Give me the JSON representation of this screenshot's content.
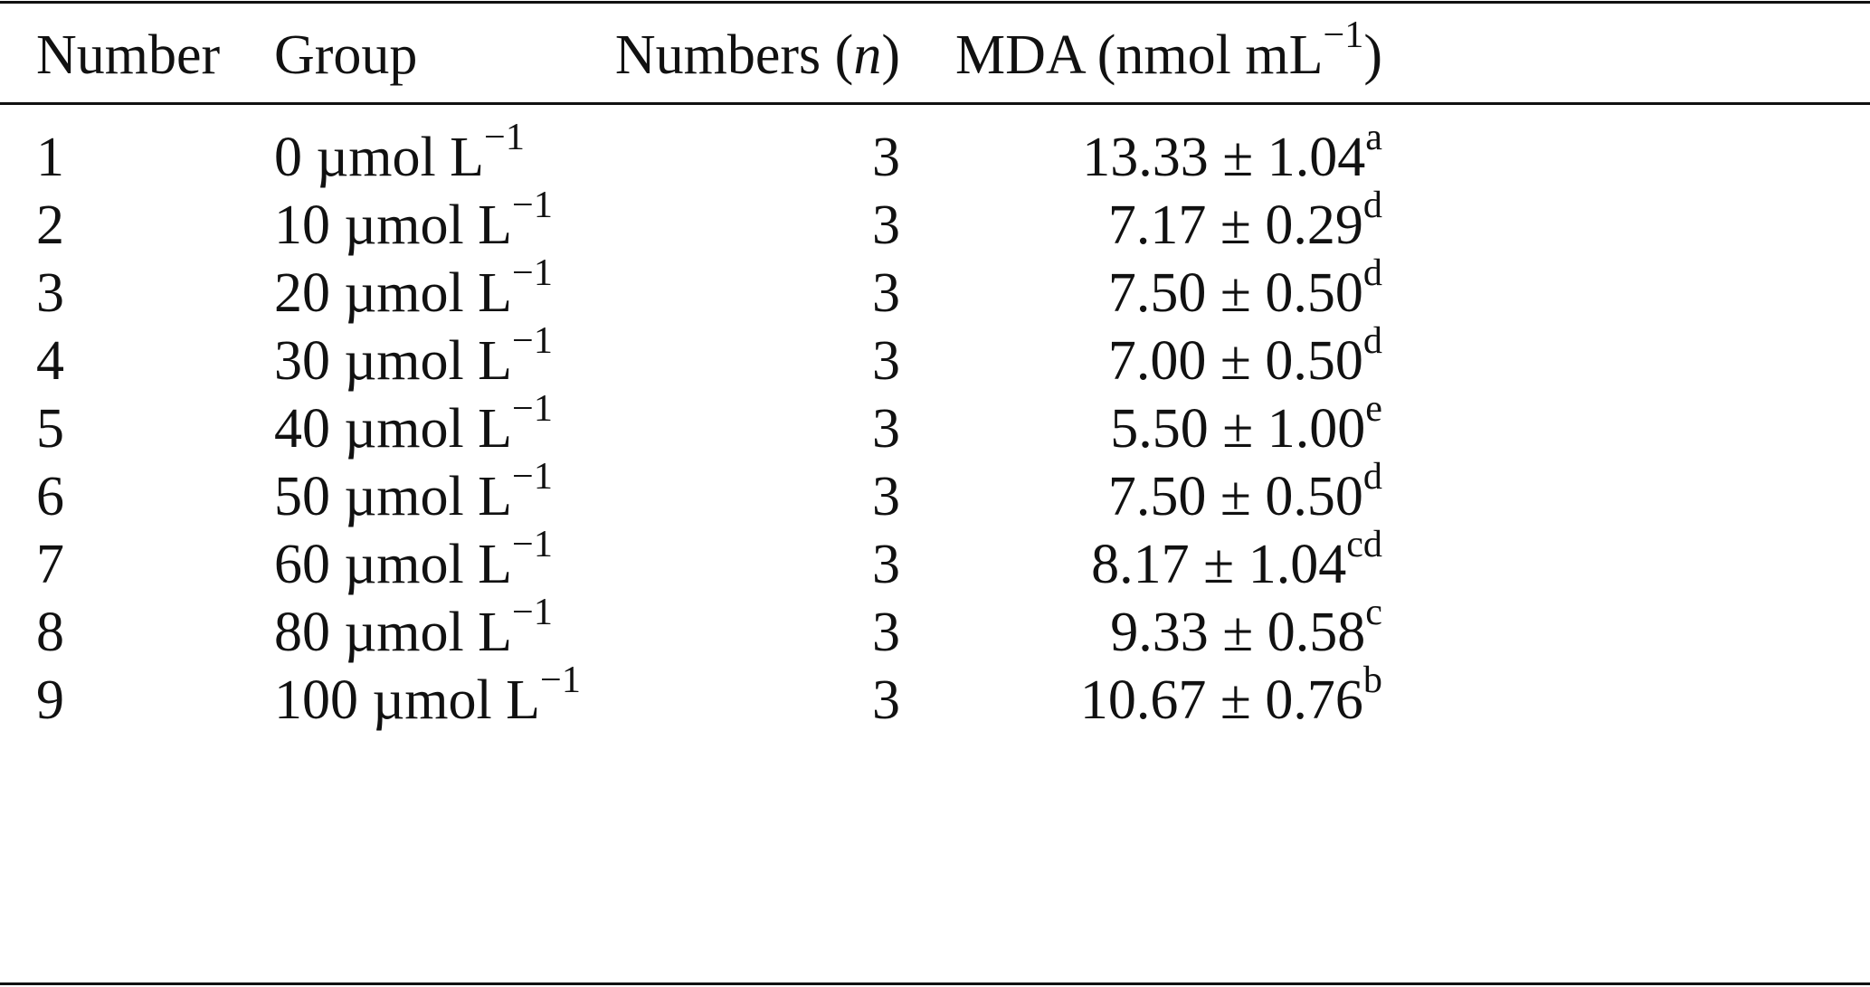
{
  "table": {
    "header": {
      "number": "Number",
      "group": "Group",
      "n": {
        "before": "Numbers (",
        "italic": "n",
        "after": ")"
      },
      "mda": {
        "before": "MDA (nmol mL",
        "sup": "−1",
        "after": ")"
      }
    },
    "rows": [
      {
        "number": "1",
        "group": "0 µmol L",
        "group_sup": "−1",
        "n": "3",
        "mda": "13.33 ± 1.04",
        "mda_sup": "a"
      },
      {
        "number": "2",
        "group": "10 µmol L",
        "group_sup": "−1",
        "n": "3",
        "mda": "7.17 ± 0.29",
        "mda_sup": "d"
      },
      {
        "number": "3",
        "group": "20 µmol L",
        "group_sup": "−1",
        "n": "3",
        "mda": "7.50 ± 0.50",
        "mda_sup": "d"
      },
      {
        "number": "4",
        "group": "30 µmol L",
        "group_sup": "−1",
        "n": "3",
        "mda": "7.00 ± 0.50",
        "mda_sup": "d"
      },
      {
        "number": "5",
        "group": "40 µmol L",
        "group_sup": "−1",
        "n": "3",
        "mda": "5.50 ± 1.00",
        "mda_sup": "e"
      },
      {
        "number": "6",
        "group": "50 µmol L",
        "group_sup": "−1",
        "n": "3",
        "mda": "7.50 ± 0.50",
        "mda_sup": "d"
      },
      {
        "number": "7",
        "group": "60 µmol L",
        "group_sup": "−1",
        "n": "3",
        "mda": "8.17 ± 1.04",
        "mda_sup": "cd"
      },
      {
        "number": "8",
        "group": "80 µmol L",
        "group_sup": "−1",
        "n": "3",
        "mda": "9.33 ± 0.58",
        "mda_sup": "c"
      },
      {
        "number": "9",
        "group": "100 µmol L",
        "group_sup": "−1",
        "n": "3",
        "mda": "10.67 ± 0.76",
        "mda_sup": "b"
      }
    ]
  }
}
